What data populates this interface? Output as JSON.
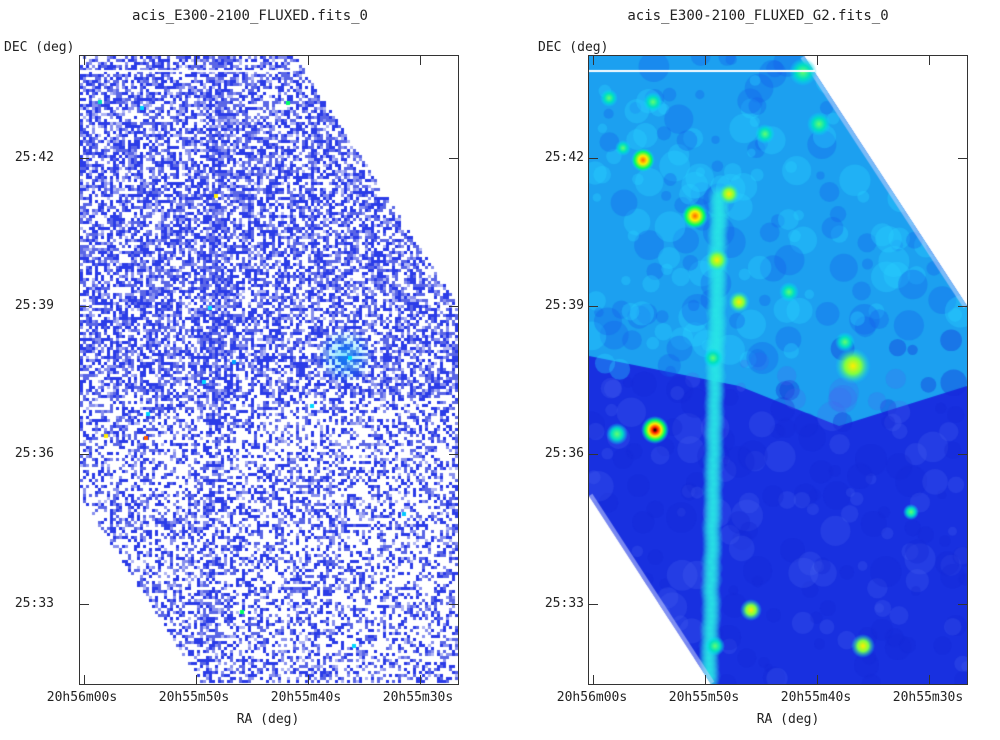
{
  "chart_data": [
    {
      "type": "heatmap",
      "title": "acis_E300-2100_FLUXED.fits_0",
      "xlabel": "RA (deg)",
      "ylabel": "DEC (deg)",
      "x_ticks": [
        "20h56m00s",
        "20h55m50s",
        "20h55m40s",
        "20h55m30s"
      ],
      "y_ticks": [
        "25:42",
        "25:39",
        "25:36",
        "25:33"
      ],
      "style": "unsmoothed",
      "colormap": [
        "#ffffff",
        "#1a2ae0",
        "#00d8ff",
        "#00ff60",
        "#ffee00",
        "#ff2200",
        "#000000"
      ],
      "notable_sources": []
    },
    {
      "type": "heatmap",
      "title": "acis_E300-2100_FLUXED_G2.fits_0",
      "xlabel": "RA (deg)",
      "ylabel": "DEC (deg)",
      "x_ticks": [
        "20h56m00s",
        "20h55m50s",
        "20h55m40s",
        "20h55m30s"
      ],
      "y_ticks": [
        "25:42",
        "25:39",
        "25:36",
        "25:33"
      ],
      "style": "smoothed",
      "colormap": [
        "#ffffff",
        "#1a2ae0",
        "#00d8ff",
        "#00ff60",
        "#ffee00",
        "#ff2200",
        "#000000"
      ],
      "notable_sources": []
    }
  ]
}
